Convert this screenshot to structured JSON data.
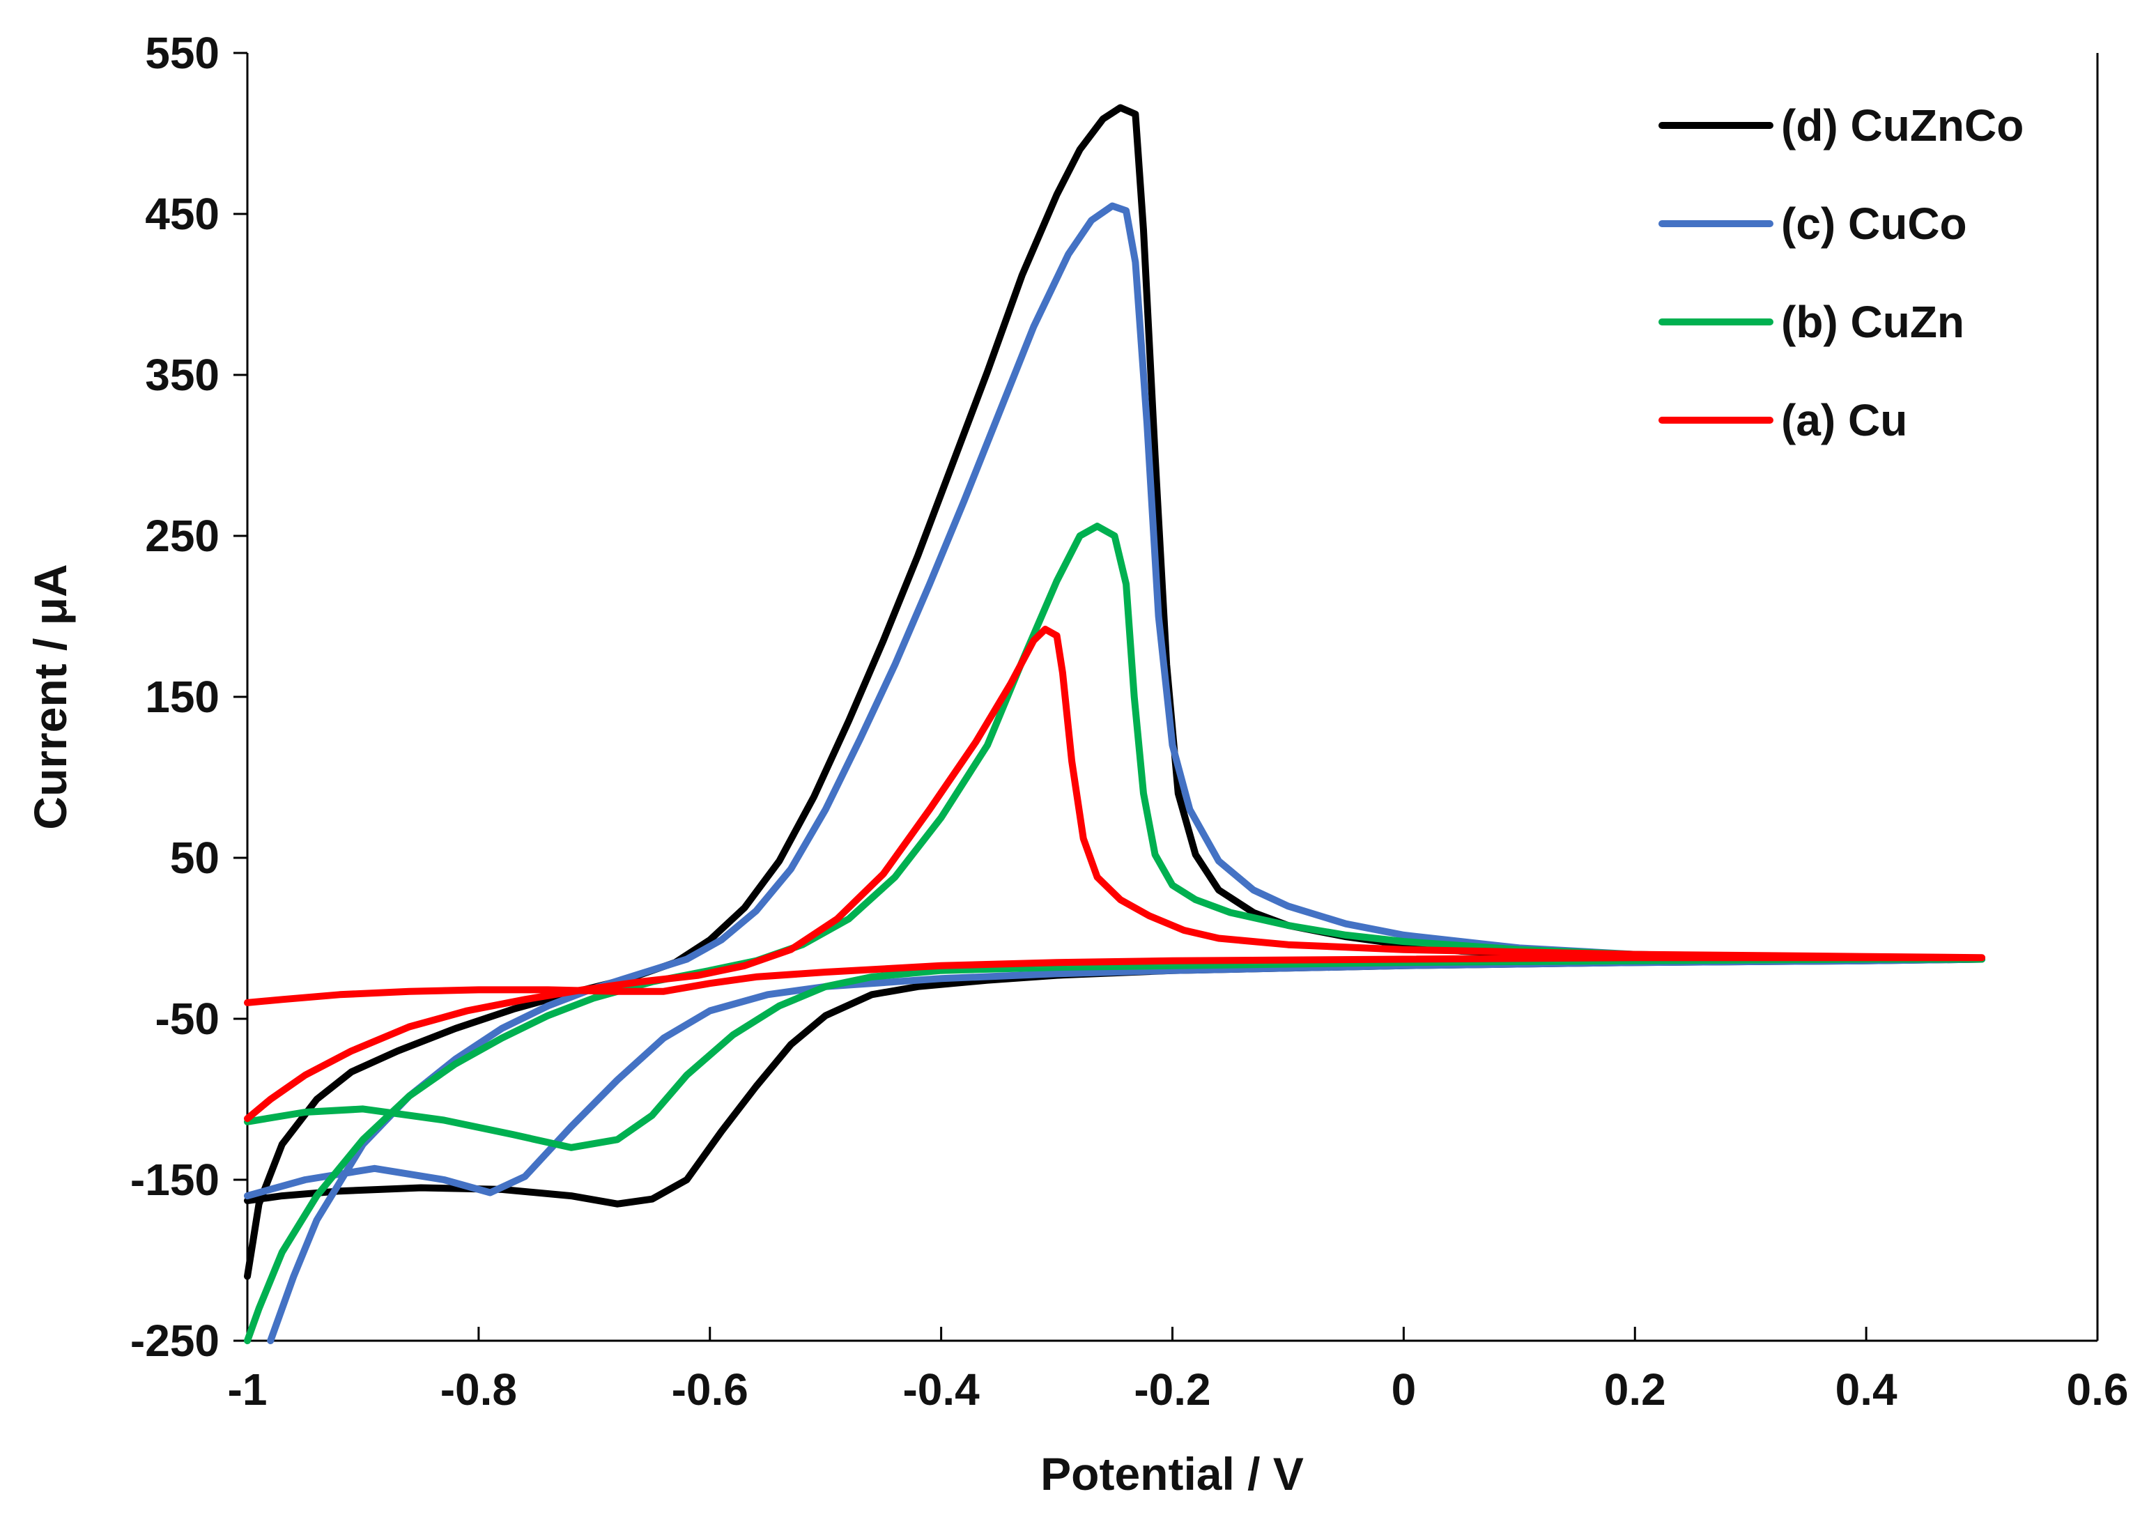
{
  "chart_data": {
    "type": "line",
    "title": "",
    "xlabel": "Potential / V",
    "ylabel": "Current / μA",
    "xlim": [
      -1,
      0.6
    ],
    "ylim": [
      -250,
      550
    ],
    "x_ticks": [
      -1,
      -0.8,
      -0.6,
      -0.4,
      -0.2,
      0,
      0.2,
      0.4,
      0.6
    ],
    "x_tick_labels": [
      "-1",
      "-0.8",
      "-0.6",
      "-0.4",
      "-0.2",
      "0",
      "0.2",
      "0.4",
      "0.6"
    ],
    "y_ticks": [
      -250,
      -150,
      -50,
      50,
      150,
      250,
      350,
      450,
      550
    ],
    "y_tick_labels": [
      "-250",
      "-150",
      "-50",
      "50",
      "150",
      "250",
      "350",
      "450",
      "550"
    ],
    "grid": false,
    "legend_position": "top-right",
    "series": [
      {
        "name": "(d) CuZnCo",
        "color": "#000000",
        "points": [
          [
            -1.0,
            -210
          ],
          [
            -0.99,
            -165
          ],
          [
            -0.97,
            -128
          ],
          [
            -0.94,
            -100
          ],
          [
            -0.91,
            -83
          ],
          [
            -0.87,
            -70
          ],
          [
            -0.82,
            -56
          ],
          [
            -0.77,
            -44
          ],
          [
            -0.72,
            -34
          ],
          [
            -0.67,
            -25
          ],
          [
            -0.63,
            -15
          ],
          [
            -0.6,
            -1
          ],
          [
            -0.57,
            19
          ],
          [
            -0.54,
            48
          ],
          [
            -0.51,
            88
          ],
          [
            -0.48,
            135
          ],
          [
            -0.45,
            185
          ],
          [
            -0.42,
            238
          ],
          [
            -0.39,
            295
          ],
          [
            -0.36,
            352
          ],
          [
            -0.33,
            412
          ],
          [
            -0.3,
            462
          ],
          [
            -0.28,
            490
          ],
          [
            -0.26,
            509
          ],
          [
            -0.245,
            516
          ],
          [
            -0.232,
            512
          ],
          [
            -0.225,
            440
          ],
          [
            -0.215,
            300
          ],
          [
            -0.205,
            170
          ],
          [
            -0.195,
            90
          ],
          [
            -0.18,
            52
          ],
          [
            -0.16,
            30
          ],
          [
            -0.13,
            16
          ],
          [
            -0.1,
            8
          ],
          [
            -0.05,
            1
          ],
          [
            0.0,
            -4
          ],
          [
            0.05,
            -8
          ],
          [
            0.2,
            -12
          ],
          [
            0.4,
            -13
          ],
          [
            0.5,
            -13
          ],
          [
            0.4,
            -14
          ],
          [
            0.2,
            -15
          ],
          [
            0.0,
            -17
          ],
          [
            -0.2,
            -20
          ],
          [
            -0.3,
            -23
          ],
          [
            -0.36,
            -26
          ],
          [
            -0.42,
            -30
          ],
          [
            -0.46,
            -35
          ],
          [
            -0.5,
            -48
          ],
          [
            -0.53,
            -66
          ],
          [
            -0.56,
            -92
          ],
          [
            -0.59,
            -120
          ],
          [
            -0.62,
            -150
          ],
          [
            -0.65,
            -162
          ],
          [
            -0.68,
            -165
          ],
          [
            -0.72,
            -160
          ],
          [
            -0.78,
            -156
          ],
          [
            -0.85,
            -155
          ],
          [
            -0.92,
            -157
          ],
          [
            -0.97,
            -160
          ],
          [
            -1.0,
            -163
          ]
        ]
      },
      {
        "name": "(c) CuCo",
        "color": "#4472C4",
        "points": [
          [
            -0.98,
            -250
          ],
          [
            -0.96,
            -210
          ],
          [
            -0.94,
            -175
          ],
          [
            -0.9,
            -128
          ],
          [
            -0.86,
            -98
          ],
          [
            -0.82,
            -75
          ],
          [
            -0.78,
            -56
          ],
          [
            -0.74,
            -42
          ],
          [
            -0.7,
            -31
          ],
          [
            -0.66,
            -22
          ],
          [
            -0.62,
            -13
          ],
          [
            -0.59,
            -1
          ],
          [
            -0.56,
            17
          ],
          [
            -0.53,
            43
          ],
          [
            -0.5,
            80
          ],
          [
            -0.47,
            124
          ],
          [
            -0.44,
            170
          ],
          [
            -0.41,
            220
          ],
          [
            -0.38,
            272
          ],
          [
            -0.35,
            326
          ],
          [
            -0.32,
            380
          ],
          [
            -0.29,
            425
          ],
          [
            -0.27,
            446
          ],
          [
            -0.252,
            455
          ],
          [
            -0.24,
            452
          ],
          [
            -0.232,
            420
          ],
          [
            -0.222,
            320
          ],
          [
            -0.212,
            200
          ],
          [
            -0.2,
            120
          ],
          [
            -0.185,
            80
          ],
          [
            -0.16,
            48
          ],
          [
            -0.13,
            30
          ],
          [
            -0.1,
            20
          ],
          [
            -0.05,
            9
          ],
          [
            0.0,
            2
          ],
          [
            0.1,
            -6
          ],
          [
            0.2,
            -10
          ],
          [
            0.35,
            -12
          ],
          [
            0.5,
            -13
          ],
          [
            0.4,
            -14
          ],
          [
            0.2,
            -15
          ],
          [
            0.0,
            -17
          ],
          [
            -0.2,
            -20
          ],
          [
            -0.3,
            -22
          ],
          [
            -0.4,
            -25
          ],
          [
            -0.5,
            -30
          ],
          [
            -0.55,
            -35
          ],
          [
            -0.6,
            -45
          ],
          [
            -0.64,
            -62
          ],
          [
            -0.68,
            -88
          ],
          [
            -0.72,
            -117
          ],
          [
            -0.76,
            -148
          ],
          [
            -0.79,
            -158
          ],
          [
            -0.83,
            -150
          ],
          [
            -0.89,
            -143
          ],
          [
            -0.95,
            -150
          ],
          [
            -1.0,
            -160
          ]
        ]
      },
      {
        "name": "(b) CuZn",
        "color": "#00B050",
        "points": [
          [
            -1.0,
            -250
          ],
          [
            -0.99,
            -230
          ],
          [
            -0.97,
            -195
          ],
          [
            -0.94,
            -160
          ],
          [
            -0.9,
            -125
          ],
          [
            -0.86,
            -98
          ],
          [
            -0.82,
            -78
          ],
          [
            -0.78,
            -62
          ],
          [
            -0.74,
            -48
          ],
          [
            -0.7,
            -37
          ],
          [
            -0.65,
            -27
          ],
          [
            -0.6,
            -20
          ],
          [
            -0.56,
            -14
          ],
          [
            -0.52,
            -4
          ],
          [
            -0.48,
            12
          ],
          [
            -0.44,
            38
          ],
          [
            -0.4,
            75
          ],
          [
            -0.36,
            120
          ],
          [
            -0.33,
            172
          ],
          [
            -0.3,
            222
          ],
          [
            -0.28,
            250
          ],
          [
            -0.265,
            256
          ],
          [
            -0.25,
            250
          ],
          [
            -0.24,
            220
          ],
          [
            -0.233,
            150
          ],
          [
            -0.225,
            90
          ],
          [
            -0.215,
            52
          ],
          [
            -0.2,
            33
          ],
          [
            -0.18,
            24
          ],
          [
            -0.15,
            16
          ],
          [
            -0.1,
            8
          ],
          [
            -0.05,
            2
          ],
          [
            0.0,
            -2
          ],
          [
            0.1,
            -7
          ],
          [
            0.2,
            -10
          ],
          [
            0.35,
            -12
          ],
          [
            0.5,
            -13
          ],
          [
            0.4,
            -13
          ],
          [
            0.2,
            -14
          ],
          [
            0.0,
            -15
          ],
          [
            -0.2,
            -17
          ],
          [
            -0.3,
            -18
          ],
          [
            -0.4,
            -20
          ],
          [
            -0.46,
            -24
          ],
          [
            -0.5,
            -30
          ],
          [
            -0.54,
            -42
          ],
          [
            -0.58,
            -60
          ],
          [
            -0.62,
            -85
          ],
          [
            -0.65,
            -110
          ],
          [
            -0.68,
            -125
          ],
          [
            -0.72,
            -130
          ],
          [
            -0.77,
            -122
          ],
          [
            -0.83,
            -113
          ],
          [
            -0.9,
            -106
          ],
          [
            -0.95,
            -108
          ],
          [
            -1.0,
            -114
          ]
        ]
      },
      {
        "name": "(a) Cu",
        "color": "#FF0000",
        "points": [
          [
            -1.0,
            -112
          ],
          [
            -0.98,
            -100
          ],
          [
            -0.95,
            -85
          ],
          [
            -0.91,
            -70
          ],
          [
            -0.86,
            -55
          ],
          [
            -0.81,
            -45
          ],
          [
            -0.76,
            -38
          ],
          [
            -0.71,
            -32
          ],
          [
            -0.66,
            -27
          ],
          [
            -0.61,
            -23
          ],
          [
            -0.57,
            -17
          ],
          [
            -0.53,
            -7
          ],
          [
            -0.49,
            12
          ],
          [
            -0.45,
            40
          ],
          [
            -0.41,
            80
          ],
          [
            -0.37,
            122
          ],
          [
            -0.34,
            158
          ],
          [
            -0.32,
            185
          ],
          [
            -0.31,
            192
          ],
          [
            -0.3,
            188
          ],
          [
            -0.295,
            165
          ],
          [
            -0.287,
            110
          ],
          [
            -0.277,
            62
          ],
          [
            -0.265,
            38
          ],
          [
            -0.245,
            24
          ],
          [
            -0.22,
            14
          ],
          [
            -0.19,
            5
          ],
          [
            -0.16,
            0
          ],
          [
            -0.1,
            -4
          ],
          [
            0.0,
            -7
          ],
          [
            0.2,
            -10
          ],
          [
            0.35,
            -11
          ],
          [
            0.5,
            -12
          ],
          [
            0.4,
            -12
          ],
          [
            0.2,
            -12
          ],
          [
            0.0,
            -13
          ],
          [
            -0.2,
            -14
          ],
          [
            -0.3,
            -15
          ],
          [
            -0.4,
            -17
          ],
          [
            -0.5,
            -21
          ],
          [
            -0.56,
            -24
          ],
          [
            -0.6,
            -28
          ],
          [
            -0.64,
            -33
          ],
          [
            -0.68,
            -33
          ],
          [
            -0.74,
            -32
          ],
          [
            -0.8,
            -32
          ],
          [
            -0.86,
            -33
          ],
          [
            -0.92,
            -35
          ],
          [
            -0.97,
            -38
          ],
          [
            -1.0,
            -40
          ]
        ]
      }
    ]
  }
}
